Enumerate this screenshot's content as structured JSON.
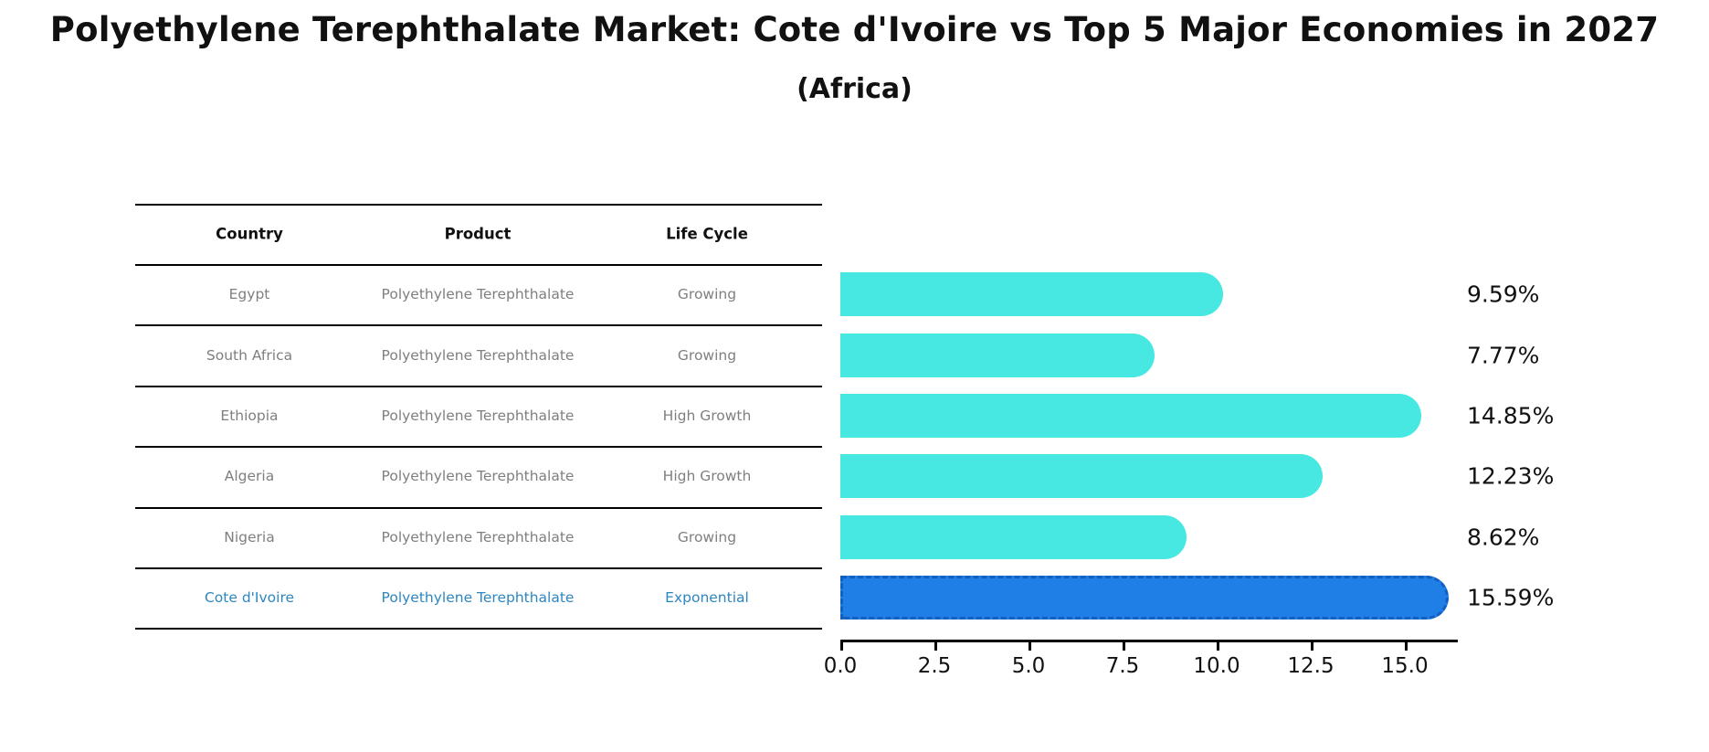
{
  "title": "Polyethylene Terephthalate Market: Cote d'Ivoire vs Top 5 Major Economies in 2027",
  "subtitle": "(Africa)",
  "table": {
    "headers": [
      "Country",
      "Product",
      "Life Cycle"
    ],
    "rows": [
      {
        "country": "Egypt",
        "product": "Polyethylene Terephthalate",
        "life_cycle": "Growing",
        "highlight": false
      },
      {
        "country": "South Africa",
        "product": "Polyethylene Terephthalate",
        "life_cycle": "Growing",
        "highlight": false
      },
      {
        "country": "Ethiopia",
        "product": "Polyethylene Terephthalate",
        "life_cycle": "High Growth",
        "highlight": false
      },
      {
        "country": "Algeria",
        "product": "Polyethylene Terephthalate",
        "life_cycle": "High Growth",
        "highlight": false
      },
      {
        "country": "Nigeria",
        "product": "Polyethylene Terephthalate",
        "life_cycle": "Growing",
        "highlight": false
      },
      {
        "country": "Cote d'Ivoire",
        "product": "Polyethylene Terephthalate",
        "life_cycle": "Exponential",
        "highlight": true
      }
    ]
  },
  "chart_data": {
    "type": "bar",
    "orientation": "horizontal",
    "title": "Polyethylene Terephthalate Market: Cote d'Ivoire vs Top 5 Major Economies in 2027",
    "subtitle": "(Africa)",
    "categories": [
      "Egypt",
      "South Africa",
      "Ethiopia",
      "Algeria",
      "Nigeria",
      "Cote d'Ivoire"
    ],
    "values": [
      9.59,
      7.77,
      14.85,
      12.23,
      8.62,
      15.59
    ],
    "value_labels": [
      "9.59%",
      "7.77%",
      "14.85%",
      "12.23%",
      "8.62%",
      "15.59%"
    ],
    "xlabel": "",
    "ylabel": "",
    "xlim": [
      0,
      16.4
    ],
    "xticks": [
      0.0,
      2.5,
      5.0,
      7.5,
      10.0,
      12.5,
      15.0
    ],
    "xtick_labels": [
      "0.0",
      "2.5",
      "5.0",
      "7.5",
      "10.0",
      "12.5",
      "15.0"
    ],
    "grid": false,
    "legend": false,
    "highlight_index": 5,
    "bar_color": "#46E8E1",
    "highlight_bar_color": "#1F7FE6",
    "highlight_border_color": "#135FC0"
  },
  "colors": {
    "row_text": "#7f7f7f",
    "highlight_text": "#2E86C1",
    "header_text": "#111111",
    "line": "#000000",
    "background": "#ffffff"
  }
}
